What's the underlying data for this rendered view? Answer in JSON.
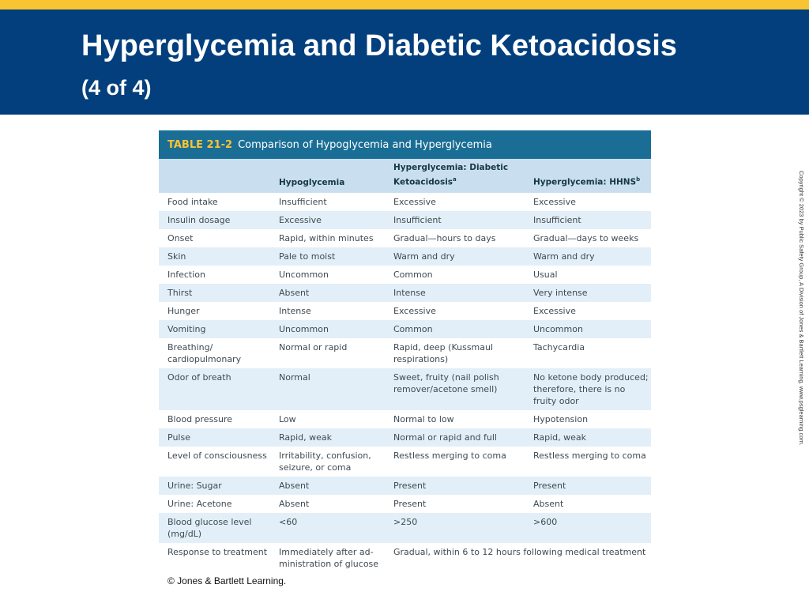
{
  "slide": {
    "title_main": "Hyperglycemia and Diabetic Ketoacidosis",
    "title_sub": "(4 of 4)",
    "footer_copyright": "© Jones & Bartlett Learning.",
    "side_copyright": "Copyright © 2023 by Public Safety Group, A Division of Jones & Bartlett Learning. www.psglearning.com.",
    "colors": {
      "top_stripe": "#f9c431",
      "header_bg": "#033f7c",
      "caption_bg": "#1a6e95",
      "header_row_bg": "#c9dff0",
      "alt_row_bg": "#e3eff8"
    }
  },
  "table": {
    "number": "TABLE 21-2",
    "caption": "Comparison of Hypoglycemia and Hyperglycemia",
    "headers": [
      "",
      "Hypoglycemia",
      "Hyperglycemia: Diabetic Ketoacidosis",
      "Hyperglycemia: HHNS"
    ],
    "header_sups": [
      "",
      "",
      "a",
      "b"
    ],
    "rows": [
      [
        "Food intake",
        "Insufficient",
        "Excessive",
        "Excessive"
      ],
      [
        "Insulin dosage",
        "Excessive",
        "Insufficient",
        "Insufficient"
      ],
      [
        "Onset",
        "Rapid, within minutes",
        "Gradual—hours to days",
        "Gradual—days to weeks"
      ],
      [
        "Skin",
        "Pale to moist",
        "Warm and dry",
        "Warm and dry"
      ],
      [
        "Infection",
        "Uncommon",
        "Common",
        "Usual"
      ],
      [
        "Thirst",
        "Absent",
        "Intense",
        "Very intense"
      ],
      [
        "Hunger",
        "Intense",
        "Excessive",
        "Excessive"
      ],
      [
        "Vomiting",
        "Uncommon",
        "Common",
        "Uncommon"
      ],
      [
        "Breathing/ cardiopulmonary",
        "Normal or rapid",
        "Rapid, deep (Kussmaul respirations)",
        "Tachycardia"
      ],
      [
        "Odor of breath",
        "Normal",
        "Sweet, fruity (nail polish remover/acetone smell)",
        "No ketone body produced; therefore, there is no fruity odor"
      ],
      [
        "Blood pressure",
        "Low",
        "Normal to low",
        "Hypotension"
      ],
      [
        "Pulse",
        "Rapid, weak",
        "Normal or rapid and full",
        "Rapid, weak"
      ],
      [
        "Level of consciousness",
        "Irritability, confusion, seizure, or coma",
        "Restless merging to coma",
        "Restless merging to coma"
      ],
      [
        "Urine: Sugar",
        "Absent",
        "Present",
        "Present"
      ],
      [
        "Urine: Acetone",
        "Absent",
        "Present",
        "Absent"
      ],
      [
        "Blood glucose level (mg/dL)",
        "<60",
        ">250",
        ">600"
      ],
      [
        "Response to treatment",
        "Immediately after ad-ministration of glucose",
        "Gradual, within 6 to 12 hours following medical treatment",
        ""
      ]
    ]
  }
}
